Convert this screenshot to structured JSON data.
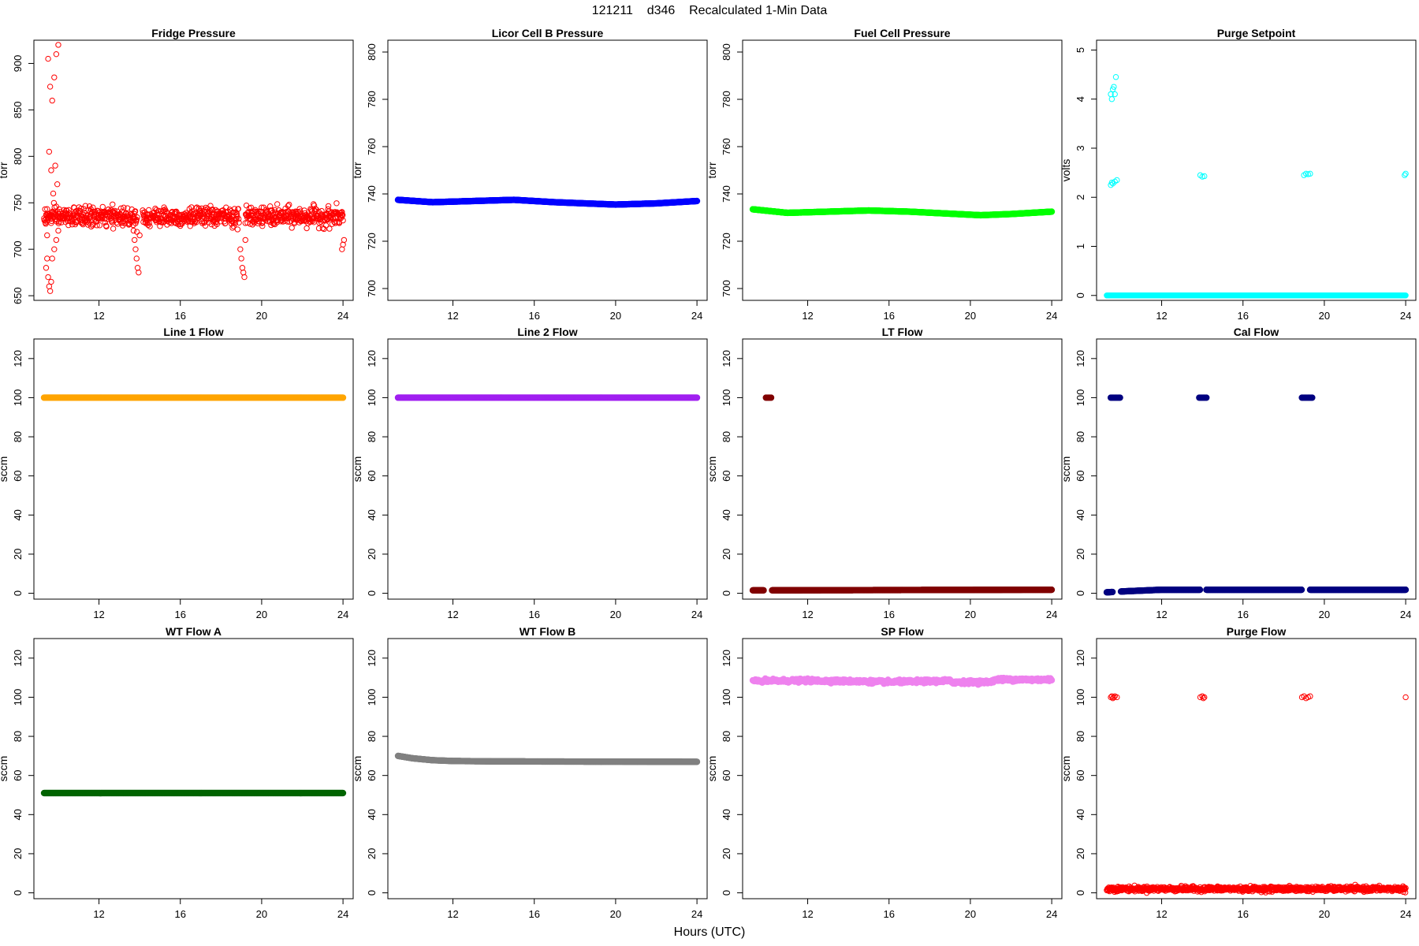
{
  "figure": {
    "title": "121211    d346    Recalculated 1-Min Data",
    "xlabel": "Hours (UTC)"
  },
  "chart_data": [
    {
      "type": "scatter",
      "title": "Fridge Pressure",
      "ylabel": "torr",
      "xlim": [
        8.8,
        24.5
      ],
      "ylim": [
        645,
        925
      ],
      "xticks": [
        12,
        16,
        20,
        24
      ],
      "yticks": [
        650,
        700,
        750,
        800,
        850,
        900
      ],
      "color": "#ff0000",
      "marker": "open",
      "grid": false,
      "series": [
        {
          "generator": "noisy",
          "x_range": [
            9.3,
            24.0
          ],
          "base": [
            [
              9.3,
              735
            ],
            [
              24.0,
              735
            ]
          ],
          "noise": 5,
          "gaps": [
            [
              13.9,
              14.15
            ],
            [
              18.9,
              19.2
            ]
          ],
          "extra_points": [
            [
              9.4,
              733
            ],
            [
              9.5,
              905
            ],
            [
              9.6,
              875
            ],
            [
              9.7,
              860
            ],
            [
              9.8,
              885
            ],
            [
              9.9,
              910
            ],
            [
              10.0,
              920
            ],
            [
              9.55,
              805
            ],
            [
              9.65,
              785
            ],
            [
              9.75,
              760
            ],
            [
              9.85,
              790
            ],
            [
              9.95,
              770
            ],
            [
              9.45,
              715
            ],
            [
              9.4,
              680
            ],
            [
              9.45,
              690
            ],
            [
              9.5,
              670
            ],
            [
              9.55,
              660
            ],
            [
              9.6,
              655
            ],
            [
              9.65,
              665
            ],
            [
              9.7,
              690
            ],
            [
              9.8,
              700
            ],
            [
              9.9,
              710
            ],
            [
              10.0,
              720
            ],
            [
              13.75,
              710
            ],
            [
              13.8,
              700
            ],
            [
              13.85,
              690
            ],
            [
              13.9,
              680
            ],
            [
              13.95,
              675
            ],
            [
              14.0,
              715
            ],
            [
              13.7,
              720
            ],
            [
              18.95,
              700
            ],
            [
              19.0,
              690
            ],
            [
              19.05,
              680
            ],
            [
              19.1,
              675
            ],
            [
              19.15,
              670
            ],
            [
              19.2,
              710
            ],
            [
              23.95,
              700
            ],
            [
              24.0,
              705
            ],
            [
              24.05,
              710
            ]
          ]
        }
      ]
    },
    {
      "type": "scatter",
      "title": "Licor Cell B Pressure",
      "ylabel": "torr",
      "xlim": [
        8.8,
        24.5
      ],
      "ylim": [
        695,
        805
      ],
      "xticks": [
        12,
        16,
        20,
        24
      ],
      "yticks": [
        700,
        720,
        740,
        760,
        780,
        800
      ],
      "color": "#0000ff",
      "marker": "filled",
      "grid": false,
      "series": [
        {
          "generator": "smooth",
          "x_range": [
            9.3,
            24.0
          ],
          "base": [
            [
              9.3,
              737.5
            ],
            [
              11.0,
              736.5
            ],
            [
              13.0,
              737.0
            ],
            [
              15.0,
              737.5
            ],
            [
              17.0,
              736.5
            ],
            [
              20.0,
              735.5
            ],
            [
              22.0,
              736.0
            ],
            [
              24.0,
              737.0
            ]
          ]
        }
      ]
    },
    {
      "type": "scatter",
      "title": "Fuel Cell Pressure",
      "ylabel": "torr",
      "xlim": [
        8.8,
        24.5
      ],
      "ylim": [
        695,
        805
      ],
      "xticks": [
        12,
        16,
        20,
        24
      ],
      "yticks": [
        700,
        720,
        740,
        760,
        780,
        800
      ],
      "color": "#00ff00",
      "marker": "filled",
      "grid": false,
      "series": [
        {
          "generator": "smooth",
          "x_range": [
            9.3,
            24.0
          ],
          "base": [
            [
              9.3,
              733.5
            ],
            [
              11.0,
              732.0
            ],
            [
              13.0,
              732.5
            ],
            [
              15.0,
              733.0
            ],
            [
              17.0,
              732.5
            ],
            [
              20.5,
              731.0
            ],
            [
              22.0,
              731.5
            ],
            [
              24.0,
              732.5
            ]
          ]
        }
      ]
    },
    {
      "type": "scatter",
      "title": "Purge Setpoint",
      "ylabel": "volts",
      "xlim": [
        8.8,
        24.5
      ],
      "ylim": [
        -0.1,
        5.2
      ],
      "xticks": [
        12,
        16,
        20,
        24
      ],
      "yticks": [
        0,
        1,
        2,
        3,
        4,
        5
      ],
      "color": "#00ffff",
      "marker": "open",
      "grid": false,
      "series": [
        {
          "generator": "flat",
          "x_range": [
            9.3,
            24.0
          ],
          "base": [
            [
              9.3,
              0
            ],
            [
              24.0,
              0
            ]
          ],
          "extra_points": [
            [
              9.5,
              4.1
            ],
            [
              9.55,
              4.0
            ],
            [
              9.6,
              4.2
            ],
            [
              9.65,
              4.25
            ],
            [
              9.7,
              4.1
            ],
            [
              9.75,
              4.45
            ],
            [
              9.5,
              2.25
            ],
            [
              9.55,
              2.3
            ],
            [
              9.6,
              2.28
            ],
            [
              9.7,
              2.32
            ],
            [
              9.8,
              2.35
            ],
            [
              13.9,
              2.45
            ],
            [
              14.0,
              2.42
            ],
            [
              14.1,
              2.43
            ],
            [
              19.0,
              2.45
            ],
            [
              19.1,
              2.48
            ],
            [
              19.2,
              2.47
            ],
            [
              19.3,
              2.48
            ],
            [
              23.95,
              2.45
            ],
            [
              24.0,
              2.48
            ]
          ]
        }
      ]
    },
    {
      "type": "scatter",
      "title": "Line 1 Flow",
      "ylabel": "sccm",
      "xlim": [
        8.8,
        24.5
      ],
      "ylim": [
        -3,
        130
      ],
      "xticks": [
        12,
        16,
        20,
        24
      ],
      "yticks": [
        0,
        20,
        40,
        60,
        80,
        100,
        120
      ],
      "color": "#ffa500",
      "marker": "filled",
      "grid": false,
      "series": [
        {
          "generator": "flat",
          "x_range": [
            9.3,
            24.0
          ],
          "base": [
            [
              9.3,
              100
            ],
            [
              24.0,
              100
            ]
          ]
        }
      ]
    },
    {
      "type": "scatter",
      "title": "Line 2 Flow",
      "ylabel": "sccm",
      "xlim": [
        8.8,
        24.5
      ],
      "ylim": [
        -3,
        130
      ],
      "xticks": [
        12,
        16,
        20,
        24
      ],
      "yticks": [
        0,
        20,
        40,
        60,
        80,
        100,
        120
      ],
      "color": "#a020f0",
      "marker": "filled",
      "grid": false,
      "series": [
        {
          "generator": "flat",
          "x_range": [
            9.3,
            24.0
          ],
          "base": [
            [
              9.3,
              100
            ],
            [
              24.0,
              100
            ]
          ]
        }
      ]
    },
    {
      "type": "scatter",
      "title": "LT Flow",
      "ylabel": "sccm",
      "xlim": [
        8.8,
        24.5
      ],
      "ylim": [
        -3,
        130
      ],
      "xticks": [
        12,
        16,
        20,
        24
      ],
      "yticks": [
        0,
        20,
        40,
        60,
        80,
        100,
        120
      ],
      "color": "#800000",
      "marker": "filled",
      "grid": false,
      "series": [
        {
          "generator": "flat",
          "x_range": [
            9.3,
            24.0
          ],
          "base": [
            [
              9.3,
              1.5
            ],
            [
              24.0,
              1.8
            ]
          ],
          "gaps": [
            [
              9.85,
              10.25
            ]
          ],
          "extra_points": [
            [
              9.95,
              100
            ],
            [
              10.0,
              100
            ],
            [
              10.05,
              100
            ],
            [
              10.1,
              100
            ],
            [
              10.15,
              100
            ],
            [
              10.2,
              100
            ]
          ]
        }
      ]
    },
    {
      "type": "scatter",
      "title": "Cal Flow",
      "ylabel": "sccm",
      "xlim": [
        8.8,
        24.5
      ],
      "ylim": [
        -3,
        130
      ],
      "xticks": [
        12,
        16,
        20,
        24
      ],
      "yticks": [
        0,
        20,
        40,
        60,
        80,
        100,
        120
      ],
      "color": "#000080",
      "marker": "filled",
      "grid": false,
      "series": [
        {
          "generator": "flat",
          "x_range": [
            9.3,
            24.0
          ],
          "base": [
            [
              9.3,
              0.5
            ],
            [
              10.2,
              1.0
            ],
            [
              12.0,
              1.8
            ],
            [
              24.0,
              1.8
            ]
          ],
          "gaps": [
            [
              9.6,
              10.0
            ],
            [
              13.9,
              14.2
            ],
            [
              18.9,
              19.3
            ]
          ],
          "extra_points": [
            [
              9.5,
              100
            ],
            [
              9.55,
              100
            ],
            [
              9.6,
              100
            ],
            [
              9.65,
              100
            ],
            [
              9.7,
              100
            ],
            [
              9.75,
              100
            ],
            [
              9.8,
              100
            ],
            [
              9.85,
              100
            ],
            [
              9.9,
              100
            ],
            [
              9.95,
              100
            ],
            [
              13.85,
              100
            ],
            [
              13.9,
              100
            ],
            [
              13.95,
              100
            ],
            [
              14.0,
              100
            ],
            [
              14.05,
              100
            ],
            [
              14.1,
              100
            ],
            [
              14.15,
              100
            ],
            [
              14.2,
              100
            ],
            [
              18.9,
              100
            ],
            [
              18.95,
              100
            ],
            [
              19.0,
              100
            ],
            [
              19.05,
              100
            ],
            [
              19.1,
              100
            ],
            [
              19.15,
              100
            ],
            [
              19.2,
              100
            ],
            [
              19.25,
              100
            ],
            [
              19.3,
              100
            ],
            [
              19.35,
              100
            ],
            [
              19.4,
              100
            ]
          ]
        }
      ]
    },
    {
      "type": "scatter",
      "title": "WT Flow A",
      "ylabel": "sccm",
      "xlim": [
        8.8,
        24.5
      ],
      "ylim": [
        -3,
        130
      ],
      "xticks": [
        12,
        16,
        20,
        24
      ],
      "yticks": [
        0,
        20,
        40,
        60,
        80,
        100,
        120
      ],
      "color": "#006400",
      "marker": "filled",
      "grid": false,
      "series": [
        {
          "generator": "flat",
          "x_range": [
            9.3,
            24.0
          ],
          "base": [
            [
              9.3,
              51
            ],
            [
              24.0,
              51
            ]
          ]
        }
      ]
    },
    {
      "type": "scatter",
      "title": "WT Flow B",
      "ylabel": "sccm",
      "xlim": [
        8.8,
        24.5
      ],
      "ylim": [
        -3,
        130
      ],
      "xticks": [
        12,
        16,
        20,
        24
      ],
      "yticks": [
        0,
        20,
        40,
        60,
        80,
        100,
        120
      ],
      "color": "#808080",
      "marker": "filled",
      "grid": false,
      "series": [
        {
          "generator": "smooth",
          "x_range": [
            9.3,
            24.0
          ],
          "base": [
            [
              9.3,
              70
            ],
            [
              10.0,
              68.8
            ],
            [
              11.0,
              67.8
            ],
            [
              12.0,
              67.4
            ],
            [
              14.0,
              67.2
            ],
            [
              18.0,
              67.1
            ],
            [
              24.0,
              67.0
            ]
          ]
        }
      ]
    },
    {
      "type": "scatter",
      "title": "SP Flow",
      "ylabel": "sccm",
      "xlim": [
        8.8,
        24.5
      ],
      "ylim": [
        -3,
        130
      ],
      "xticks": [
        12,
        16,
        20,
        24
      ],
      "yticks": [
        0,
        20,
        40,
        60,
        80,
        100,
        120
      ],
      "color": "#ee82ee",
      "marker": "filled",
      "grid": false,
      "series": [
        {
          "generator": "noisy",
          "x_range": [
            9.3,
            24.0
          ],
          "base": [
            [
              9.3,
              108.3
            ],
            [
              12.0,
              108.5
            ],
            [
              14.0,
              108.2
            ],
            [
              16.0,
              107.8
            ],
            [
              18.0,
              108.2
            ],
            [
              19.0,
              108.4
            ],
            [
              19.1,
              107.7
            ],
            [
              21.0,
              107.8
            ],
            [
              21.2,
              109.0
            ],
            [
              24.0,
              109.0
            ]
          ],
          "noise": 0.4
        }
      ]
    },
    {
      "type": "scatter",
      "title": "Purge Flow",
      "ylabel": "sccm",
      "xlim": [
        8.8,
        24.5
      ],
      "ylim": [
        -3,
        130
      ],
      "xticks": [
        12,
        16,
        20,
        24
      ],
      "yticks": [
        0,
        20,
        40,
        60,
        80,
        100,
        120
      ],
      "color": "#ff0000",
      "marker": "open",
      "grid": false,
      "series": [
        {
          "generator": "noisy",
          "x_range": [
            9.3,
            24.0
          ],
          "base": [
            [
              9.3,
              2
            ],
            [
              24.0,
              2
            ]
          ],
          "noise": 0.6,
          "extra_points": [
            [
              9.5,
              100
            ],
            [
              9.55,
              100.5
            ],
            [
              9.6,
              99.5
            ],
            [
              9.65,
              100
            ],
            [
              9.7,
              100.5
            ],
            [
              9.8,
              100
            ],
            [
              13.9,
              100
            ],
            [
              14.0,
              100.5
            ],
            [
              14.05,
              99.5
            ],
            [
              14.1,
              100
            ],
            [
              18.9,
              100
            ],
            [
              19.0,
              100.5
            ],
            [
              19.1,
              99.5
            ],
            [
              19.2,
              100
            ],
            [
              19.3,
              100.5
            ],
            [
              24.0,
              100
            ]
          ]
        }
      ]
    }
  ]
}
